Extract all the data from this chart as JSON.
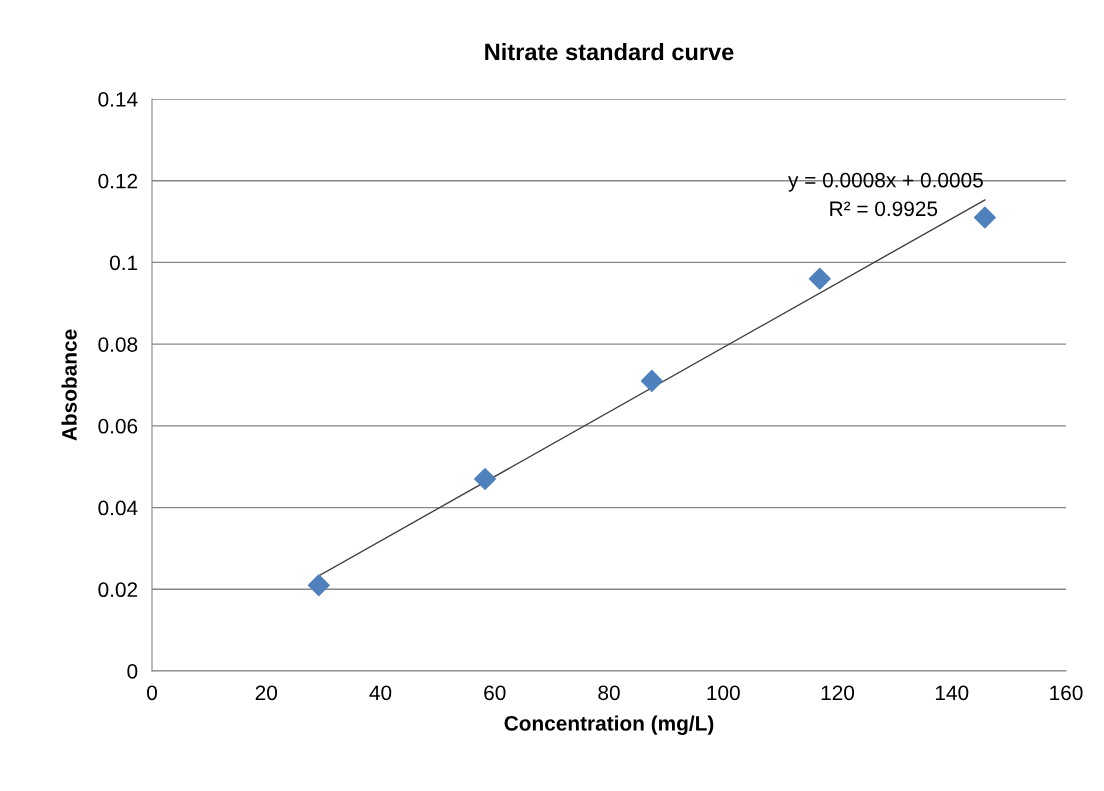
{
  "chart_data": {
    "type": "scatter",
    "title": "Nitrate standard curve",
    "xlabel": "Concentration (mg/L)",
    "ylabel": "Absobance",
    "series": [
      {
        "color": "#4f81bd",
        "marker": "diamond",
        "x": [
          29.2,
          58.3,
          87.5,
          116.9,
          145.8
        ],
        "values": [
          0.021,
          0.047,
          0.071,
          0.096,
          0.111
        ]
      },
      {
        "type": "line",
        "color": "#404040",
        "marker": "none",
        "line_style": "solid",
        "x": [
          29.2,
          145.8
        ],
        "values": [
          0.0233,
          0.1153
        ]
      }
    ],
    "annotations": [
      "y = 0.0008x + 0.0005",
      "R² = 0.9925"
    ],
    "xlim": [
      0,
      160
    ],
    "xticks": [
      0,
      20,
      40,
      60,
      80,
      100,
      120,
      140,
      160
    ],
    "ylim": [
      0,
      0.14
    ],
    "yticks": [
      0,
      0.02,
      0.04,
      0.06,
      0.08,
      0.1,
      0.12,
      0.14
    ],
    "grid": "y",
    "legend": false
  }
}
